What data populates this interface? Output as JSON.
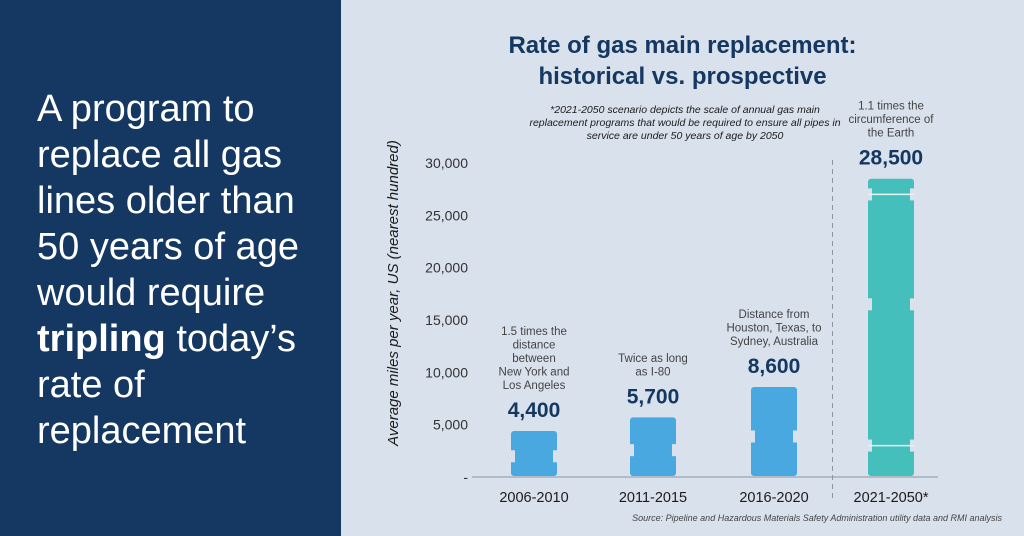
{
  "headline": {
    "before": "A program to replace all gas lines older than 50 years of age would require ",
    "emphasis": "tripling",
    "after": " today’s rate of replacement"
  },
  "source": "Source: Pipeline and Hazardous Materials Safety Administration utility data and RMI analysis",
  "colors": {
    "left_panel": "#143861",
    "background": "#d9e1ec",
    "historical_bar": "#4aa8e0",
    "prospective_bar": "#45bfbc",
    "value_text": "#143861"
  },
  "chart_data": {
    "type": "bar",
    "title": [
      "Rate of gas main replacement:",
      "historical vs. prospective"
    ],
    "note": "*2021-2050 scenario depicts the scale of annual gas main replacement programs that would be required to ensure all pipes in service are under 50 years of age by 2050",
    "ylabel": "Average miles per year, US (nearest hundred)",
    "ylim": [
      0,
      30000
    ],
    "yticks": [
      {
        "value": 0,
        "label": "-"
      },
      {
        "value": 5000,
        "label": "5,000"
      },
      {
        "value": 10000,
        "label": "10,000"
      },
      {
        "value": 15000,
        "label": "15,000"
      },
      {
        "value": 20000,
        "label": "20,000"
      },
      {
        "value": 25000,
        "label": "25,000"
      },
      {
        "value": 30000,
        "label": "30,000"
      }
    ],
    "grid": false,
    "categories": [
      "2006-2010",
      "2011-2015",
      "2016-2020",
      "2021-2050*"
    ],
    "values": [
      4400,
      5700,
      8600,
      28500
    ],
    "value_labels": [
      "4,400",
      "5,700",
      "8,600",
      "28,500"
    ],
    "annotations": [
      [
        "1.5 times the",
        "distance",
        "between",
        "New York and",
        "Los Angeles"
      ],
      [
        "Twice as long",
        "as I-80"
      ],
      [
        "Distance from",
        "Houston, Texas, to",
        "Sydney, Australia"
      ],
      [
        "1.1 times the",
        "circumference of",
        "the Earth"
      ]
    ],
    "divider_after_category": 2
  }
}
